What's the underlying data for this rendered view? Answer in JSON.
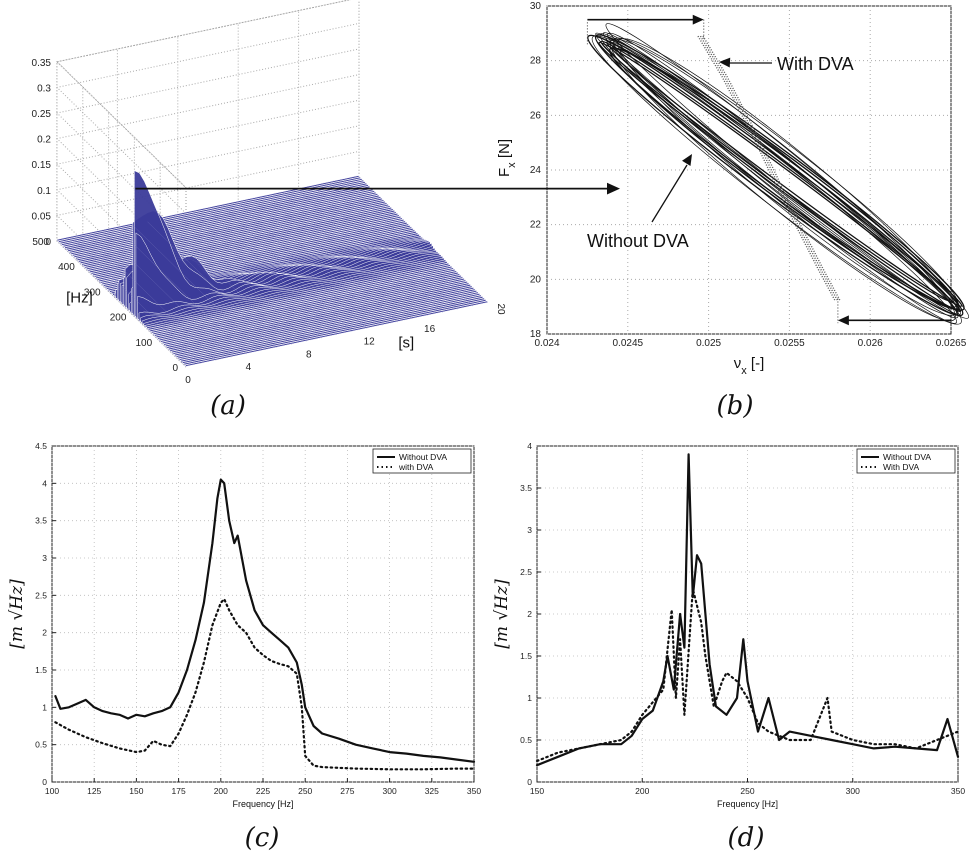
{
  "panel_a": {
    "caption": "(a)",
    "zlim": [
      0,
      0.35
    ],
    "z_ticks": [
      "0",
      "0.05",
      "0.1",
      "0.15",
      "0.2",
      "0.25",
      "0.3",
      "0.35"
    ],
    "freq_ticks": [
      "0",
      "100",
      "200",
      "300",
      "400",
      "500"
    ],
    "freq_label": "[Hz]",
    "time_ticks": [
      "0",
      "4",
      "8",
      "12",
      "16",
      "20"
    ],
    "time_label": "[s]",
    "surface_color": "#3b3b9a"
  },
  "panel_b": {
    "caption": "(b)",
    "xlabel": "ν",
    "xlabel_sub": "x",
    "xlabel_unit": " [-]",
    "ylabel": "F",
    "ylabel_sub": "x",
    "ylabel_unit": " [N]",
    "xlim": [
      0.024,
      0.0265
    ],
    "ylim": [
      18,
      30
    ],
    "x_ticks": [
      "0.024",
      "0.0245",
      "0.025",
      "0.0255",
      "0.026",
      "0.0265"
    ],
    "y_ticks": [
      "18",
      "20",
      "22",
      "24",
      "26",
      "28",
      "30"
    ],
    "annotation_with": "With DVA",
    "annotation_without": "Without DVA"
  },
  "panel_c": {
    "caption": "(c)",
    "xlabel": "Frequency [Hz]",
    "ylabel": "[m √Hz]",
    "x_ticks": [
      "100",
      "125",
      "150",
      "175",
      "200",
      "225",
      "250",
      "275",
      "300",
      "325",
      "350"
    ],
    "y_ticks": [
      "0",
      "0.5",
      "1",
      "1.5",
      "2",
      "2.5",
      "3",
      "3.5",
      "4",
      "4.5"
    ],
    "legend": [
      "Without DVA",
      "with DVA"
    ]
  },
  "panel_d": {
    "caption": "(d)",
    "xlabel": "Frequency [Hz]",
    "ylabel": "[m √Hz]",
    "x_ticks": [
      "150",
      "200",
      "250",
      "300",
      "350"
    ],
    "y_ticks": [
      "0",
      "0.5",
      "1",
      "1.5",
      "2",
      "2.5",
      "3",
      "3.5",
      "4"
    ],
    "legend": [
      "Without DVA",
      "With DVA"
    ]
  },
  "chart_data": [
    {
      "type": "surface3d",
      "xlabel": "[s]",
      "ylabel": "[Hz]",
      "xlim": [
        0,
        20
      ],
      "ylim": [
        0,
        500
      ],
      "zlim": [
        0,
        0.35
      ],
      "peaks": [
        {
          "t": 0,
          "f": 200,
          "amp": 0.25
        },
        {
          "t": 2,
          "f": 205,
          "amp": 0.12
        },
        {
          "t": 4,
          "f": 215,
          "amp": 0.06
        }
      ]
    },
    {
      "type": "line",
      "xlabel": "νx [-]",
      "ylabel": "Fx [N]",
      "xlim": [
        0.024,
        0.0265
      ],
      "ylim": [
        18,
        30
      ],
      "series": [
        {
          "name": "Without DVA",
          "center": [
            0.02545,
            23.8
          ],
          "x_range": [
            0.02425,
            0.02645
          ],
          "y_range": [
            18.8,
            28.9
          ]
        },
        {
          "name": "With DVA",
          "x": [
            0.02495,
            0.0251,
            0.0253,
            0.0255,
            0.0257,
            0.0258
          ],
          "y": [
            28.9,
            27.4,
            25.1,
            22.6,
            20.3,
            19.2
          ]
        }
      ]
    },
    {
      "type": "line",
      "xlabel": "Frequency [Hz]",
      "ylabel": "[m √Hz]",
      "xlim": [
        100,
        350
      ],
      "ylim": [
        0,
        4.5
      ],
      "series": [
        {
          "name": "Without DVA",
          "x": [
            102,
            105,
            110,
            115,
            120,
            125,
            130,
            135,
            140,
            145,
            150,
            155,
            160,
            165,
            170,
            175,
            180,
            185,
            190,
            195,
            198,
            200,
            202,
            205,
            208,
            210,
            215,
            220,
            225,
            230,
            235,
            240,
            245,
            248,
            250,
            255,
            260,
            270,
            280,
            290,
            300,
            310,
            320,
            330,
            340,
            350
          ],
          "y": [
            1.15,
            0.98,
            1.0,
            1.05,
            1.1,
            1.0,
            0.95,
            0.92,
            0.9,
            0.85,
            0.9,
            0.88,
            0.92,
            0.95,
            1.0,
            1.2,
            1.5,
            1.9,
            2.4,
            3.2,
            3.8,
            4.05,
            4.0,
            3.5,
            3.2,
            3.3,
            2.7,
            2.3,
            2.1,
            2.0,
            1.9,
            1.8,
            1.6,
            1.3,
            1.0,
            0.75,
            0.65,
            0.58,
            0.5,
            0.45,
            0.4,
            0.38,
            0.35,
            0.33,
            0.3,
            0.27
          ]
        },
        {
          "name": "with DVA",
          "x": [
            102,
            110,
            120,
            130,
            140,
            150,
            155,
            160,
            165,
            170,
            175,
            180,
            185,
            190,
            195,
            200,
            202,
            205,
            210,
            215,
            220,
            225,
            230,
            235,
            240,
            245,
            248,
            250,
            255,
            260,
            280,
            300,
            320,
            340,
            350
          ],
          "y": [
            0.8,
            0.7,
            0.6,
            0.52,
            0.45,
            0.4,
            0.42,
            0.55,
            0.5,
            0.48,
            0.65,
            0.9,
            1.2,
            1.6,
            2.1,
            2.4,
            2.45,
            2.3,
            2.1,
            2.0,
            1.8,
            1.7,
            1.62,
            1.58,
            1.55,
            1.45,
            1.0,
            0.35,
            0.22,
            0.2,
            0.18,
            0.17,
            0.17,
            0.18,
            0.18
          ]
        }
      ]
    },
    {
      "type": "line",
      "xlabel": "Frequency [Hz]",
      "ylabel": "[m √Hz]",
      "xlim": [
        150,
        350
      ],
      "ylim": [
        0,
        4
      ],
      "series": [
        {
          "name": "Without DVA",
          "x": [
            150,
            160,
            170,
            180,
            190,
            195,
            200,
            205,
            210,
            212,
            215,
            218,
            220,
            222,
            224,
            226,
            228,
            230,
            232,
            235,
            240,
            245,
            248,
            250,
            255,
            260,
            265,
            270,
            280,
            290,
            300,
            310,
            320,
            330,
            340,
            345,
            350
          ],
          "y": [
            0.2,
            0.3,
            0.4,
            0.45,
            0.45,
            0.55,
            0.75,
            0.85,
            1.2,
            1.5,
            1.1,
            2.0,
            1.6,
            3.9,
            2.2,
            2.7,
            2.6,
            2.0,
            1.4,
            0.9,
            0.8,
            1.0,
            1.7,
            1.2,
            0.6,
            1.0,
            0.5,
            0.6,
            0.55,
            0.5,
            0.45,
            0.4,
            0.42,
            0.4,
            0.38,
            0.75,
            0.3
          ]
        },
        {
          "name": "With DVA",
          "x": [
            150,
            160,
            170,
            180,
            190,
            195,
            200,
            205,
            210,
            214,
            216,
            218,
            220,
            224,
            226,
            228,
            230,
            234,
            238,
            240,
            245,
            250,
            255,
            260,
            270,
            280,
            288,
            290,
            300,
            310,
            320,
            330,
            340,
            350
          ],
          "y": [
            0.25,
            0.35,
            0.4,
            0.45,
            0.5,
            0.6,
            0.8,
            0.95,
            1.1,
            2.05,
            1.0,
            1.7,
            0.8,
            2.3,
            2.1,
            1.9,
            1.5,
            0.9,
            1.2,
            1.3,
            1.2,
            1.0,
            0.7,
            0.6,
            0.5,
            0.5,
            1.0,
            0.6,
            0.5,
            0.45,
            0.45,
            0.4,
            0.5,
            0.6
          ]
        }
      ]
    }
  ]
}
